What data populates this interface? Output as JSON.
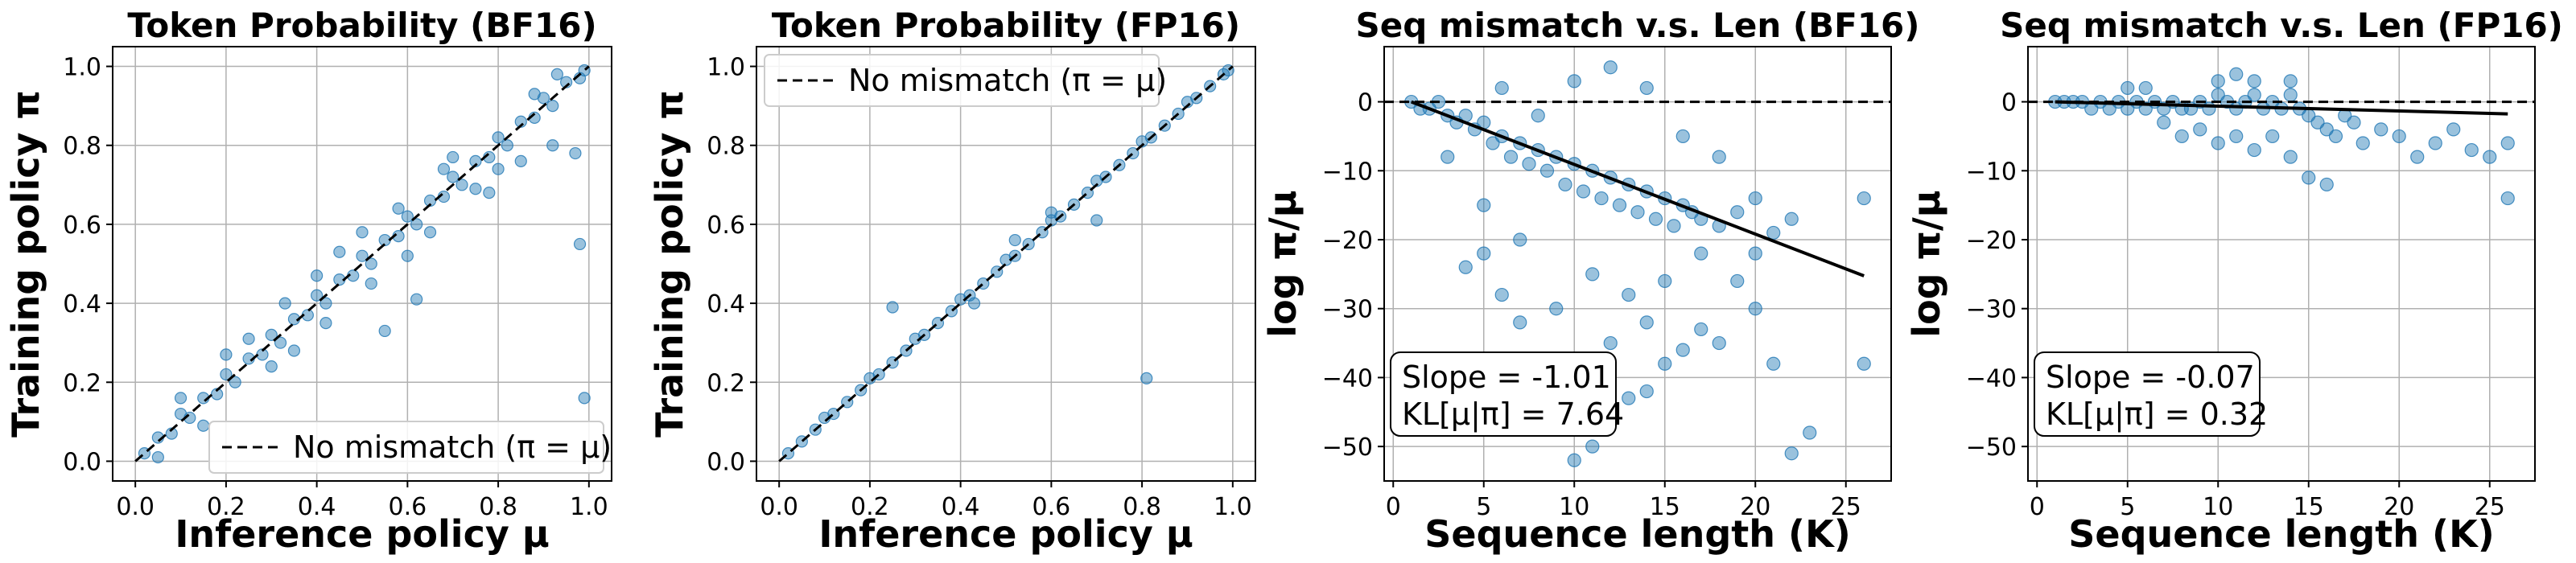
{
  "figure": {
    "background": "#ffffff",
    "point_color": "#1f77b4",
    "line_color": "#000000"
  },
  "chart_data": [
    {
      "type": "scatter",
      "title": "Token Probability (BF16)",
      "xlabel": "Inference policy μ",
      "ylabel": "Training policy π",
      "xlim": [
        -0.05,
        1.05
      ],
      "ylim": [
        -0.05,
        1.05
      ],
      "xticks": [
        "0.0",
        "0.2",
        "0.4",
        "0.6",
        "0.8",
        "1.0"
      ],
      "yticks": [
        "0.0",
        "0.2",
        "0.4",
        "0.6",
        "0.8",
        "1.0"
      ],
      "grid": true,
      "legend": {
        "label": "No mismatch (π = μ)",
        "placement": "lower-right"
      },
      "reference_line": {
        "style": "dashed",
        "from": [
          0,
          0
        ],
        "to": [
          1,
          1
        ]
      },
      "points": [
        [
          0.02,
          0.02
        ],
        [
          0.05,
          0.06
        ],
        [
          0.08,
          0.07
        ],
        [
          0.1,
          0.12
        ],
        [
          0.12,
          0.11
        ],
        [
          0.15,
          0.16
        ],
        [
          0.18,
          0.17
        ],
        [
          0.2,
          0.22
        ],
        [
          0.22,
          0.2
        ],
        [
          0.25,
          0.26
        ],
        [
          0.28,
          0.27
        ],
        [
          0.3,
          0.32
        ],
        [
          0.32,
          0.3
        ],
        [
          0.35,
          0.36
        ],
        [
          0.38,
          0.37
        ],
        [
          0.4,
          0.42
        ],
        [
          0.42,
          0.4
        ],
        [
          0.45,
          0.46
        ],
        [
          0.48,
          0.47
        ],
        [
          0.5,
          0.52
        ],
        [
          0.52,
          0.5
        ],
        [
          0.55,
          0.56
        ],
        [
          0.58,
          0.57
        ],
        [
          0.6,
          0.62
        ],
        [
          0.62,
          0.6
        ],
        [
          0.65,
          0.66
        ],
        [
          0.68,
          0.67
        ],
        [
          0.7,
          0.72
        ],
        [
          0.72,
          0.7
        ],
        [
          0.75,
          0.76
        ],
        [
          0.78,
          0.77
        ],
        [
          0.8,
          0.82
        ],
        [
          0.82,
          0.8
        ],
        [
          0.85,
          0.86
        ],
        [
          0.88,
          0.87
        ],
        [
          0.9,
          0.92
        ],
        [
          0.92,
          0.9
        ],
        [
          0.95,
          0.96
        ],
        [
          0.98,
          0.97
        ],
        [
          0.99,
          0.99
        ],
        [
          0.1,
          0.16
        ],
        [
          0.25,
          0.31
        ],
        [
          0.42,
          0.35
        ],
        [
          0.45,
          0.53
        ],
        [
          0.55,
          0.33
        ],
        [
          0.6,
          0.52
        ],
        [
          0.62,
          0.41
        ],
        [
          0.7,
          0.77
        ],
        [
          0.78,
          0.68
        ],
        [
          0.85,
          0.76
        ],
        [
          0.92,
          0.8
        ],
        [
          0.98,
          0.55
        ],
        [
          0.99,
          0.16
        ],
        [
          0.97,
          0.78
        ],
        [
          0.35,
          0.28
        ],
        [
          0.2,
          0.27
        ],
        [
          0.65,
          0.58
        ],
        [
          0.5,
          0.58
        ],
        [
          0.3,
          0.24
        ],
        [
          0.88,
          0.93
        ],
        [
          0.15,
          0.09
        ],
        [
          0.4,
          0.47
        ],
        [
          0.75,
          0.69
        ],
        [
          0.58,
          0.64
        ],
        [
          0.05,
          0.01
        ],
        [
          0.33,
          0.4
        ],
        [
          0.68,
          0.74
        ],
        [
          0.52,
          0.45
        ],
        [
          0.8,
          0.74
        ],
        [
          0.93,
          0.98
        ]
      ]
    },
    {
      "type": "scatter",
      "title": "Token Probability (FP16)",
      "xlabel": "Inference policy μ",
      "ylabel": "Training policy π",
      "xlim": [
        -0.05,
        1.05
      ],
      "ylim": [
        -0.05,
        1.05
      ],
      "xticks": [
        "0.0",
        "0.2",
        "0.4",
        "0.6",
        "0.8",
        "1.0"
      ],
      "yticks": [
        "0.0",
        "0.2",
        "0.4",
        "0.6",
        "0.8",
        "1.0"
      ],
      "grid": true,
      "legend": {
        "label": "No mismatch (π = μ)",
        "placement": "upper-left"
      },
      "reference_line": {
        "style": "dashed",
        "from": [
          0,
          0
        ],
        "to": [
          1,
          1
        ]
      },
      "points": [
        [
          0.02,
          0.02
        ],
        [
          0.05,
          0.05
        ],
        [
          0.08,
          0.08
        ],
        [
          0.1,
          0.11
        ],
        [
          0.12,
          0.12
        ],
        [
          0.15,
          0.15
        ],
        [
          0.18,
          0.18
        ],
        [
          0.2,
          0.21
        ],
        [
          0.22,
          0.22
        ],
        [
          0.25,
          0.25
        ],
        [
          0.28,
          0.28
        ],
        [
          0.3,
          0.31
        ],
        [
          0.32,
          0.32
        ],
        [
          0.35,
          0.35
        ],
        [
          0.38,
          0.38
        ],
        [
          0.4,
          0.41
        ],
        [
          0.42,
          0.42
        ],
        [
          0.45,
          0.45
        ],
        [
          0.48,
          0.48
        ],
        [
          0.5,
          0.51
        ],
        [
          0.52,
          0.52
        ],
        [
          0.55,
          0.55
        ],
        [
          0.58,
          0.58
        ],
        [
          0.6,
          0.61
        ],
        [
          0.62,
          0.62
        ],
        [
          0.65,
          0.65
        ],
        [
          0.68,
          0.68
        ],
        [
          0.7,
          0.71
        ],
        [
          0.72,
          0.72
        ],
        [
          0.75,
          0.75
        ],
        [
          0.78,
          0.78
        ],
        [
          0.8,
          0.81
        ],
        [
          0.82,
          0.82
        ],
        [
          0.85,
          0.85
        ],
        [
          0.88,
          0.88
        ],
        [
          0.9,
          0.91
        ],
        [
          0.92,
          0.92
        ],
        [
          0.95,
          0.95
        ],
        [
          0.98,
          0.98
        ],
        [
          0.99,
          0.99
        ],
        [
          0.25,
          0.39
        ],
        [
          0.81,
          0.21
        ],
        [
          0.7,
          0.61
        ],
        [
          0.52,
          0.56
        ],
        [
          0.43,
          0.4
        ],
        [
          0.6,
          0.63
        ]
      ]
    },
    {
      "type": "scatter",
      "title": "Seq mismatch v.s. Len (BF16)",
      "xlabel": "Sequence length (K)",
      "ylabel": "log π/μ",
      "xlim": [
        -0.5,
        27.5
      ],
      "ylim": [
        -55,
        8
      ],
      "xticks": [
        "0",
        "5",
        "10",
        "15",
        "20",
        "25"
      ],
      "yticks": [
        "0",
        "−10",
        "−20",
        "−30",
        "−40",
        "−50"
      ],
      "grid": true,
      "reference_line": {
        "style": "dashed",
        "y": 0
      },
      "fit_line": {
        "slope": -1.01,
        "x_range": [
          1,
          26
        ]
      },
      "annotation": {
        "slope": "Slope = -1.01",
        "kl": "KL[μ|π] = 7.64",
        "placement": "lower-left"
      },
      "points": [
        [
          1,
          0
        ],
        [
          1.5,
          -1
        ],
        [
          2,
          -1
        ],
        [
          2.5,
          0
        ],
        [
          3,
          -2
        ],
        [
          3.5,
          -3
        ],
        [
          4,
          -2
        ],
        [
          4.5,
          -4
        ],
        [
          5,
          -3
        ],
        [
          5.5,
          -6
        ],
        [
          6,
          -5
        ],
        [
          6.5,
          -8
        ],
        [
          7,
          -6
        ],
        [
          7.5,
          -9
        ],
        [
          8,
          -7
        ],
        [
          8.5,
          -10
        ],
        [
          9,
          -8
        ],
        [
          9.5,
          -12
        ],
        [
          10,
          -9
        ],
        [
          10.5,
          -13
        ],
        [
          11,
          -10
        ],
        [
          11.5,
          -14
        ],
        [
          12,
          -11
        ],
        [
          12.5,
          -15
        ],
        [
          13,
          -12
        ],
        [
          13.5,
          -16
        ],
        [
          14,
          -13
        ],
        [
          14.5,
          -17
        ],
        [
          15,
          -14
        ],
        [
          15.5,
          -18
        ],
        [
          16,
          -15
        ],
        [
          16.5,
          -16
        ],
        [
          17,
          -17
        ],
        [
          18,
          -18
        ],
        [
          19,
          -16
        ],
        [
          20,
          -14
        ],
        [
          21,
          -19
        ],
        [
          22,
          -17
        ],
        [
          26,
          -14
        ],
        [
          26,
          -38
        ],
        [
          23,
          -48
        ],
        [
          22,
          -51
        ],
        [
          21,
          -38
        ],
        [
          20,
          -30
        ],
        [
          18,
          -35
        ],
        [
          17,
          -33
        ],
        [
          16,
          -36
        ],
        [
          15,
          -38
        ],
        [
          14,
          -42
        ],
        [
          13,
          -43
        ],
        [
          12,
          -46
        ],
        [
          11,
          -50
        ],
        [
          10,
          -52
        ],
        [
          9,
          -44
        ],
        [
          8,
          -38
        ],
        [
          7,
          -32
        ],
        [
          6,
          -28
        ],
        [
          5,
          -22
        ],
        [
          4,
          -24
        ],
        [
          12,
          5
        ],
        [
          10,
          3
        ],
        [
          14,
          2
        ],
        [
          6,
          2
        ],
        [
          8,
          -2
        ],
        [
          16,
          -5
        ],
        [
          18,
          -8
        ],
        [
          11,
          -25
        ],
        [
          13,
          -28
        ],
        [
          9,
          -30
        ],
        [
          15,
          -26
        ],
        [
          17,
          -22
        ],
        [
          7,
          -20
        ],
        [
          5,
          -15
        ],
        [
          3,
          -8
        ],
        [
          19,
          -26
        ],
        [
          20,
          -22
        ],
        [
          12,
          -35
        ],
        [
          14,
          -32
        ]
      ]
    },
    {
      "type": "scatter",
      "title": "Seq mismatch v.s. Len (FP16)",
      "xlabel": "Sequence length (K)",
      "ylabel": "log π/μ",
      "xlim": [
        -0.5,
        27.5
      ],
      "ylim": [
        -55,
        8
      ],
      "xticks": [
        "0",
        "5",
        "10",
        "15",
        "20",
        "25"
      ],
      "yticks": [
        "0",
        "−10",
        "−20",
        "−30",
        "−40",
        "−50"
      ],
      "grid": true,
      "reference_line": {
        "style": "dashed",
        "y": 0
      },
      "fit_line": {
        "slope": -0.07,
        "x_range": [
          1,
          26
        ]
      },
      "annotation": {
        "slope": "Slope = -0.07",
        "kl": "KL[μ|π] = 0.32",
        "placement": "lower-left"
      },
      "points": [
        [
          1,
          0
        ],
        [
          1.5,
          0
        ],
        [
          2,
          0
        ],
        [
          2.5,
          0
        ],
        [
          3,
          -1
        ],
        [
          3.5,
          0
        ],
        [
          4,
          -1
        ],
        [
          4.5,
          0
        ],
        [
          5,
          -1
        ],
        [
          5.5,
          0
        ],
        [
          6,
          -1
        ],
        [
          6.5,
          0
        ],
        [
          7,
          -1
        ],
        [
          7.5,
          0
        ],
        [
          8,
          -1
        ],
        [
          8.5,
          -1
        ],
        [
          9,
          0
        ],
        [
          9.5,
          -1
        ],
        [
          10,
          1
        ],
        [
          10.5,
          0
        ],
        [
          11,
          -1
        ],
        [
          11.5,
          0
        ],
        [
          12,
          1
        ],
        [
          12.5,
          -1
        ],
        [
          13,
          0
        ],
        [
          13.5,
          -1
        ],
        [
          14,
          1
        ],
        [
          14.5,
          -1
        ],
        [
          15,
          -2
        ],
        [
          15.5,
          -3
        ],
        [
          16,
          -4
        ],
        [
          16.5,
          -5
        ],
        [
          17,
          -2
        ],
        [
          17.5,
          -3
        ],
        [
          18,
          -6
        ],
        [
          19,
          -4
        ],
        [
          20,
          -5
        ],
        [
          21,
          -8
        ],
        [
          22,
          -6
        ],
        [
          23,
          -4
        ],
        [
          24,
          -7
        ],
        [
          25,
          -8
        ],
        [
          26,
          -14
        ],
        [
          26,
          -6
        ],
        [
          15,
          -11
        ],
        [
          16,
          -12
        ],
        [
          14,
          -8
        ],
        [
          13,
          -5
        ],
        [
          12,
          -7
        ],
        [
          11,
          -5
        ],
        [
          10,
          -6
        ],
        [
          9,
          -4
        ],
        [
          8,
          -5
        ],
        [
          7,
          -3
        ],
        [
          12,
          3
        ],
        [
          11,
          4
        ],
        [
          10,
          3
        ],
        [
          14,
          3
        ],
        [
          6,
          2
        ],
        [
          5,
          2
        ]
      ]
    }
  ]
}
